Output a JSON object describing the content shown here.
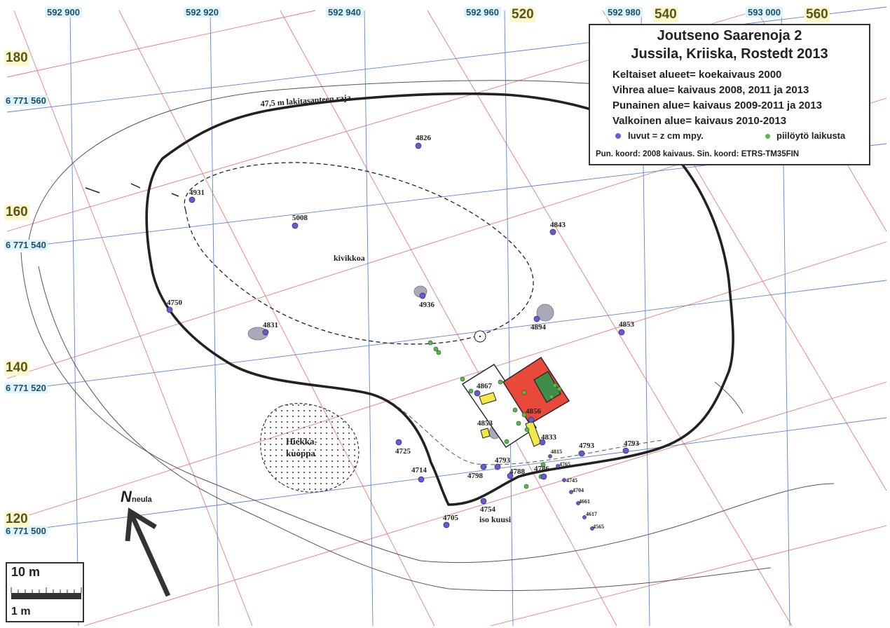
{
  "legend": {
    "title_line1": "Joutseno Saarenoja 2",
    "title_line2": "Jussila, Kriiska, Rostedt 2013",
    "lines": [
      "Keltaiset alueet= koekaivaus 2000",
      "Vihrea alue= kaivaus 2008, 2011 ja 2013",
      "Punainen alue= kaivaus 2009-2011 ja 2013",
      "Valkoinen alue= kaivaus 2010-2013"
    ],
    "symbol_purple": "luvut = z cm mpy.",
    "symbol_green": "piilöytö laikusta",
    "footer": "Pun. koord: 2008 kaivaus. Sin. koord: ETRS-TM35FIN"
  },
  "coords_top": [
    "592 900",
    "592 920",
    "592 940",
    "592 960",
    "592 980",
    "593 000"
  ],
  "coords_left": [
    "6 771 560",
    "6 771 540",
    "6 771 520",
    "6 771 500"
  ],
  "local_grid_top": [
    "540",
    "560",
    "520"
  ],
  "local_grid_left": [
    "180",
    "160",
    "140",
    "120"
  ],
  "labels": {
    "boundary": "47,5 m lakitasanteen raja",
    "kivikkoa": "kivikkoa",
    "hiekka1": "Hiekka-",
    "hiekka2": "kuoppa",
    "iso_kuusi": "iso kuusi",
    "north": "N",
    "north_sub": "neula"
  },
  "points": [
    "4826",
    "4931",
    "5008",
    "4843",
    "4936",
    "4750",
    "4831",
    "4894",
    "4853",
    "4867",
    "4856",
    "4853",
    "4833",
    "4725",
    "4815",
    "4793",
    "4793",
    "4793",
    "4798",
    "4788",
    "4786",
    "4765",
    "4714",
    "4745",
    "4704",
    "4661",
    "4617",
    "4754",
    "4705",
    "4565"
  ],
  "scale": {
    "top_label": "10 m",
    "bottom_label": "1 m"
  },
  "colors": {
    "blue_grid": "#3b6fd8",
    "red_grid": "#e05050",
    "purple_point": "#6a5acd",
    "green_point": "#4caf50",
    "red_area": "#e8493b",
    "green_area": "#3e8e4a",
    "yellow_area": "#f2e84a"
  }
}
